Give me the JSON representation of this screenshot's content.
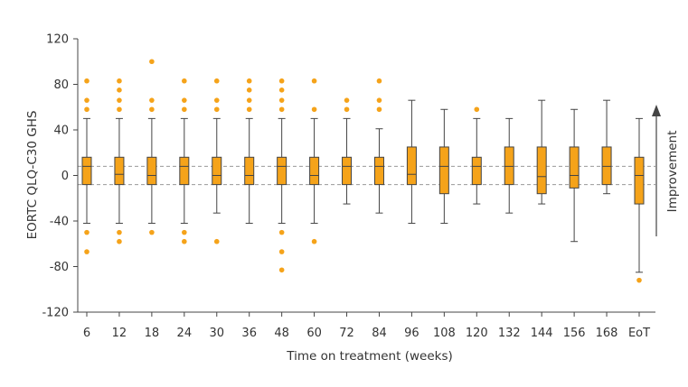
{
  "chart_data": {
    "type": "boxplot",
    "title": "",
    "xlabel": "Time on treatment (weeks)",
    "ylabel": "EORTC QLQ-C30 GHS",
    "ylim": [
      -120,
      120
    ],
    "yticks": [
      120,
      80,
      40,
      0,
      -40,
      -80,
      -120
    ],
    "categories": [
      "6",
      "12",
      "18",
      "24",
      "30",
      "36",
      "48",
      "60",
      "72",
      "84",
      "96",
      "108",
      "120",
      "132",
      "144",
      "156",
      "168",
      "EoT"
    ],
    "reference_lines": [
      8,
      -8
    ],
    "annotation": "Improvement",
    "colors": {
      "box": "#F5A31A",
      "outlier": "#F5A31A",
      "whisker": "#444444",
      "reference": "#999999"
    },
    "boxes": [
      {
        "category": "6",
        "whisker_low": -42,
        "q1": -8,
        "median": 8,
        "q3": 16,
        "whisker_high": 50,
        "outliers": [
          83,
          66,
          58,
          -50,
          -67
        ]
      },
      {
        "category": "12",
        "whisker_low": -42,
        "q1": -8,
        "median": 1,
        "q3": 16,
        "whisker_high": 50,
        "outliers": [
          83,
          75,
          66,
          58,
          -50,
          -58
        ]
      },
      {
        "category": "18",
        "whisker_low": -42,
        "q1": -8,
        "median": 0,
        "q3": 16,
        "whisker_high": 50,
        "outliers": [
          100,
          66,
          58,
          -50
        ]
      },
      {
        "category": "24",
        "whisker_low": -42,
        "q1": -8,
        "median": 8,
        "q3": 16,
        "whisker_high": 50,
        "outliers": [
          83,
          66,
          58,
          -50,
          -58
        ]
      },
      {
        "category": "30",
        "whisker_low": -33,
        "q1": -8,
        "median": 0,
        "q3": 16,
        "whisker_high": 50,
        "outliers": [
          83,
          66,
          58,
          -58
        ]
      },
      {
        "category": "36",
        "whisker_low": -42,
        "q1": -8,
        "median": 0,
        "q3": 16,
        "whisker_high": 50,
        "outliers": [
          83,
          75,
          66,
          58
        ]
      },
      {
        "category": "48",
        "whisker_low": -42,
        "q1": -8,
        "median": 8,
        "q3": 16,
        "whisker_high": 50,
        "outliers": [
          83,
          75,
          66,
          58,
          -50,
          -67,
          -83
        ]
      },
      {
        "category": "60",
        "whisker_low": -42,
        "q1": -8,
        "median": 0,
        "q3": 16,
        "whisker_high": 50,
        "outliers": [
          83,
          58,
          -58
        ]
      },
      {
        "category": "72",
        "whisker_low": -25,
        "q1": -8,
        "median": 8,
        "q3": 16,
        "whisker_high": 50,
        "outliers": [
          66,
          58
        ]
      },
      {
        "category": "84",
        "whisker_low": -33,
        "q1": -8,
        "median": 8,
        "q3": 16,
        "whisker_high": 41,
        "outliers": [
          83,
          66,
          58
        ]
      },
      {
        "category": "96",
        "whisker_low": -42,
        "q1": -8,
        "median": 1,
        "q3": 25,
        "whisker_high": 66,
        "outliers": []
      },
      {
        "category": "108",
        "whisker_low": -42,
        "q1": -16,
        "median": 8,
        "q3": 25,
        "whisker_high": 58,
        "outliers": []
      },
      {
        "category": "120",
        "whisker_low": -25,
        "q1": -8,
        "median": 8,
        "q3": 16,
        "whisker_high": 50,
        "outliers": [
          58
        ]
      },
      {
        "category": "132",
        "whisker_low": -33,
        "q1": -8,
        "median": 8,
        "q3": 25,
        "whisker_high": 50,
        "outliers": []
      },
      {
        "category": "144",
        "whisker_low": -25,
        "q1": -16,
        "median": -1,
        "q3": 25,
        "whisker_high": 66,
        "outliers": []
      },
      {
        "category": "156",
        "whisker_low": -58,
        "q1": -11,
        "median": 0,
        "q3": 25,
        "whisker_high": 58,
        "outliers": []
      },
      {
        "category": "168",
        "whisker_low": -16,
        "q1": -8,
        "median": 8,
        "q3": 25,
        "whisker_high": 66,
        "outliers": []
      },
      {
        "category": "EoT",
        "whisker_low": -85,
        "q1": -25,
        "median": 0,
        "q3": 16,
        "whisker_high": 50,
        "outliers": [
          -92
        ]
      }
    ]
  }
}
